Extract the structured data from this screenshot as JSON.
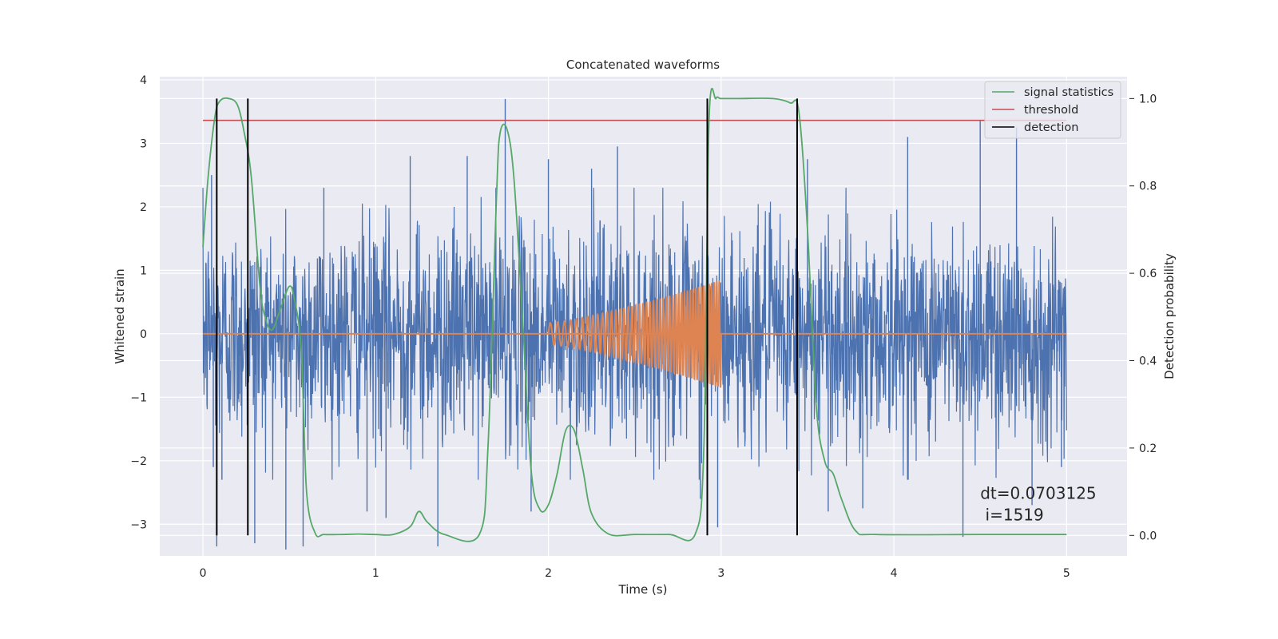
{
  "chart_data": {
    "type": "line",
    "title": "Concatenated waveforms",
    "xlabel": "Time (s)",
    "ylabel_left": "Whitened strain",
    "ylabel_right": "Detection probability",
    "xlim": [
      -0.25,
      5.35
    ],
    "ylim_left": [
      -3.5,
      4.05
    ],
    "ylim_right": [
      -0.047,
      1.05
    ],
    "x_ticks": [
      0,
      1,
      2,
      3,
      4,
      5
    ],
    "x_tick_labels": [
      "0",
      "1",
      "2",
      "3",
      "4",
      "5"
    ],
    "y_left_ticks": [
      -3,
      -2,
      -1,
      0,
      1,
      2,
      3,
      4
    ],
    "y_left_tick_labels": [
      "−3",
      "−2",
      "−1",
      "0",
      "1",
      "2",
      "3",
      "4"
    ],
    "y_right_ticks": [
      0.0,
      0.2,
      0.4,
      0.6,
      0.8,
      1.0
    ],
    "y_right_tick_labels": [
      "0.0",
      "0.2",
      "0.4",
      "0.6",
      "0.8",
      "1.0"
    ],
    "grid": true,
    "legend_position": "top-right",
    "noise": {
      "x_range": [
        0,
        5
      ],
      "amplitude_std": 0.85,
      "color": "#4c72b0",
      "spikes": [
        [
          0.05,
          2.5
        ],
        [
          0.06,
          -2.1
        ],
        [
          0.08,
          -3.35
        ],
        [
          0.11,
          -2.3
        ],
        [
          0.3,
          -3.3
        ],
        [
          0.48,
          -3.4
        ],
        [
          0.58,
          -3.35
        ],
        [
          0.7,
          2.3
        ],
        [
          0.95,
          -2.8
        ],
        [
          1.06,
          -2.9
        ],
        [
          1.2,
          2.8
        ],
        [
          1.36,
          -3.35
        ],
        [
          1.53,
          2.8
        ],
        [
          1.75,
          3.7
        ],
        [
          1.9,
          -2.8
        ],
        [
          2.0,
          2.75
        ],
        [
          2.25,
          2.6
        ],
        [
          2.4,
          2.95
        ],
        [
          2.88,
          -2.6
        ],
        [
          2.98,
          -3.05
        ],
        [
          3.5,
          2.75
        ],
        [
          3.62,
          -2.8
        ],
        [
          3.82,
          -2.75
        ],
        [
          4.08,
          3.1
        ],
        [
          4.4,
          -3.2
        ],
        [
          4.5,
          3.35
        ],
        [
          4.71,
          3.25
        ],
        [
          4.8,
          -2.7
        ],
        [
          4.97,
          -2.1
        ]
      ]
    },
    "chirp": {
      "x_range": [
        2,
        3
      ],
      "amplitude_start": 0.17,
      "amplitude_end": 0.85,
      "freq_start_hz": 22,
      "freq_end_hz": 70,
      "color": "#dd8452"
    },
    "series": [
      {
        "name": "signal statistics",
        "axis": "right",
        "color": "#55a868",
        "x": [
          0,
          0.03,
          0.07,
          0.1,
          0.15,
          0.2,
          0.24,
          0.28,
          0.33,
          0.36,
          0.4,
          0.45,
          0.5,
          0.53,
          0.57,
          0.6,
          0.65,
          0.7,
          0.8,
          0.9,
          1.0,
          1.1,
          1.2,
          1.25,
          1.3,
          1.4,
          1.6,
          1.65,
          1.7,
          1.72,
          1.76,
          1.8,
          1.85,
          1.9,
          1.95,
          2.0,
          2.05,
          2.1,
          2.15,
          2.2,
          2.25,
          2.35,
          2.5,
          2.7,
          2.85,
          2.9,
          2.93,
          2.97,
          3.0,
          3.1,
          3.3,
          3.4,
          3.45,
          3.5,
          3.55,
          3.6,
          3.65,
          3.7,
          3.78,
          3.9,
          4.5,
          5.0
        ],
        "y": [
          0.66,
          0.82,
          0.96,
          0.995,
          1.0,
          0.985,
          0.92,
          0.82,
          0.57,
          0.5,
          0.47,
          0.52,
          0.57,
          0.54,
          0.42,
          0.1,
          0.005,
          0.002,
          0.002,
          0.003,
          0.002,
          0.002,
          0.02,
          0.055,
          0.03,
          0.002,
          0.002,
          0.2,
          0.78,
          0.92,
          0.93,
          0.82,
          0.5,
          0.15,
          0.06,
          0.07,
          0.14,
          0.24,
          0.24,
          0.15,
          0.05,
          0.003,
          0.002,
          0.002,
          0.003,
          0.2,
          0.95,
          1.0,
          1.0,
          1.0,
          1.0,
          0.99,
          0.97,
          0.7,
          0.3,
          0.17,
          0.14,
          0.08,
          0.01,
          0.002,
          0.002,
          0.002
        ]
      },
      {
        "name": "threshold",
        "axis": "right",
        "color": "#c44e52",
        "x": [
          0,
          5
        ],
        "y": [
          0.95,
          0.95
        ]
      },
      {
        "name": "detection",
        "axis": "right",
        "color": "#000000",
        "x": [
          0.08,
          0.26,
          2.92,
          3.44
        ],
        "y_range": [
          0.0,
          1.0
        ]
      }
    ],
    "annotation": {
      "line1": "dt=0.0703125",
      "line2": " i=1519",
      "x": 4.5,
      "y": -2.6
    },
    "colors": {
      "axes_background": "#eaeaf2",
      "grid": "#ffffff",
      "strain": "#4c72b0",
      "template": "#dd8452",
      "signal_statistics": "#55a868",
      "threshold": "#c44e52",
      "detection": "#000000"
    }
  }
}
